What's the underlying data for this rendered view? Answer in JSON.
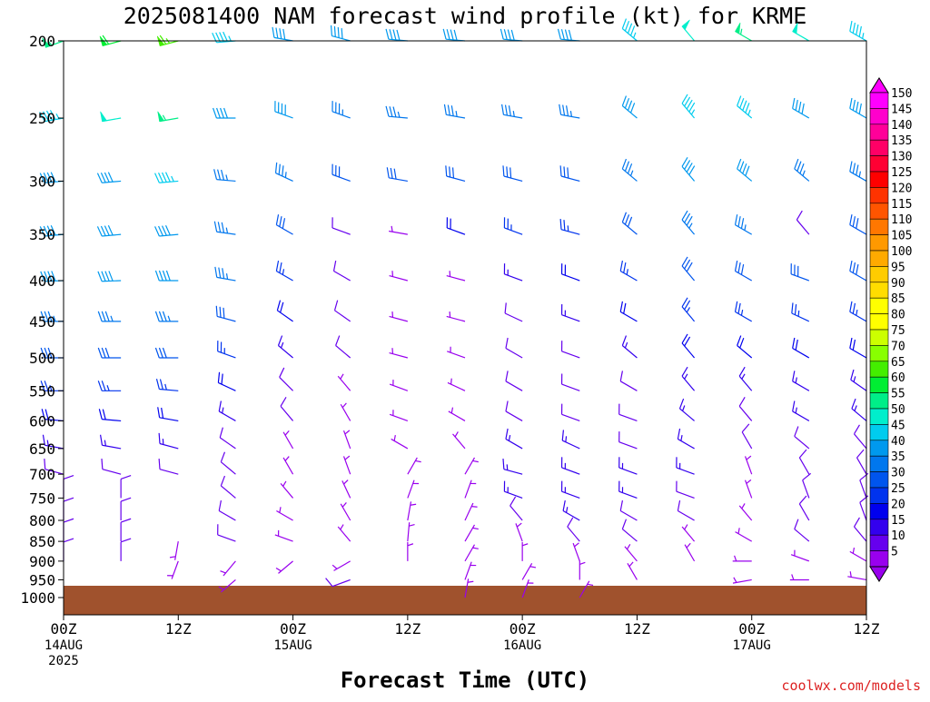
{
  "chart_data": {
    "type": "wind-barb-time-height",
    "title": "2025081400 NAM forecast wind profile (kt) for KRME",
    "xlabel": "Forecast Time (UTC)",
    "credit": "coolwx.com/models",
    "y_axis": {
      "scale": "log-pressure",
      "range_hPa": [
        1000,
        200
      ],
      "ticks": [
        "200",
        "250",
        "300",
        "350",
        "400",
        "450",
        "500",
        "550",
        "600",
        "650",
        "700",
        "750",
        "800",
        "850",
        "900",
        "950",
        "1000"
      ]
    },
    "x_axis": {
      "range_hours": [
        0,
        84
      ],
      "ticks": [
        {
          "hour": 0,
          "line1": "00Z",
          "line2": "14AUG",
          "line3": "2025"
        },
        {
          "hour": 12,
          "line1": "12Z",
          "line2": "",
          "line3": ""
        },
        {
          "hour": 24,
          "line1": "00Z",
          "line2": "15AUG",
          "line3": ""
        },
        {
          "hour": 36,
          "line1": "12Z",
          "line2": "",
          "line3": ""
        },
        {
          "hour": 48,
          "line1": "00Z",
          "line2": "16AUG",
          "line3": ""
        },
        {
          "hour": 60,
          "line1": "12Z",
          "line2": "",
          "line3": ""
        },
        {
          "hour": 72,
          "line1": "00Z",
          "line2": "17AUG",
          "line3": ""
        },
        {
          "hour": 84,
          "line1": "12Z",
          "line2": "",
          "line3": ""
        }
      ]
    },
    "colorbar": {
      "unit": "kt",
      "values": [
        "150",
        "145",
        "140",
        "135",
        "130",
        "125",
        "120",
        "115",
        "110",
        "105",
        "100",
        "95",
        "90",
        "85",
        "80",
        "75",
        "70",
        "65",
        "60",
        "55",
        "50",
        "45",
        "40",
        "35",
        "30",
        "25",
        "20",
        "15",
        "10",
        "5"
      ],
      "colors": [
        "#ff00ff",
        "#ff00cc",
        "#ff0099",
        "#ff0066",
        "#ff0033",
        "#ff0000",
        "#ff3300",
        "#ff5500",
        "#ff7700",
        "#ff9900",
        "#ffaa00",
        "#ffcc00",
        "#ffdd00",
        "#ffff00",
        "#ffff00",
        "#ccff00",
        "#88ff00",
        "#44ee00",
        "#00ee33",
        "#00ee88",
        "#00eecc",
        "#00ccee",
        "#0099ee",
        "#0077ee",
        "#0055ee",
        "#0033ee",
        "#0000ee",
        "#3300ee",
        "#6600ee",
        "#9900ee"
      ]
    },
    "levels_hPa": [
      1000,
      950,
      900,
      850,
      800,
      750,
      700,
      650,
      600,
      550,
      500,
      450,
      400,
      350,
      300,
      250,
      200
    ],
    "wind_columns": [
      {
        "hour": 0,
        "dir": [
          0,
          0,
          0,
          0,
          0,
          0,
          285,
          280,
          275,
          270,
          270,
          270,
          268,
          265,
          265,
          260,
          250
        ],
        "spd": [
          0,
          0,
          10,
          10,
          10,
          10,
          10,
          15,
          20,
          25,
          30,
          35,
          40,
          40,
          40,
          45,
          55
        ]
      },
      {
        "hour": 6,
        "dir": [
          0,
          0,
          0,
          0,
          0,
          0,
          285,
          280,
          275,
          270,
          270,
          270,
          268,
          265,
          265,
          260,
          255
        ],
        "spd": [
          0,
          0,
          10,
          10,
          10,
          10,
          10,
          15,
          20,
          25,
          30,
          35,
          40,
          40,
          40,
          50,
          60
        ]
      },
      {
        "hour": 12,
        "dir": [
          0,
          0,
          200,
          190,
          0,
          0,
          285,
          285,
          280,
          275,
          270,
          270,
          270,
          265,
          265,
          260,
          255
        ],
        "spd": [
          0,
          0,
          5,
          5,
          0,
          0,
          10,
          15,
          20,
          25,
          30,
          35,
          40,
          40,
          45,
          55,
          65
        ]
      },
      {
        "hour": 18,
        "dir": [
          0,
          230,
          220,
          290,
          300,
          310,
          310,
          305,
          300,
          295,
          290,
          285,
          280,
          278,
          275,
          270,
          265
        ],
        "spd": [
          0,
          5,
          5,
          10,
          10,
          10,
          10,
          10,
          15,
          20,
          25,
          30,
          35,
          35,
          35,
          40,
          45
        ]
      },
      {
        "hour": 24,
        "dir": [
          0,
          0,
          230,
          290,
          300,
          320,
          330,
          330,
          320,
          315,
          310,
          305,
          300,
          300,
          295,
          290,
          280
        ],
        "spd": [
          0,
          0,
          5,
          5,
          5,
          5,
          5,
          5,
          10,
          10,
          15,
          20,
          25,
          30,
          35,
          40,
          40
        ]
      },
      {
        "hour": 30,
        "dir": [
          0,
          250,
          240,
          320,
          330,
          335,
          340,
          340,
          330,
          320,
          310,
          305,
          300,
          290,
          290,
          290,
          285
        ],
        "spd": [
          0,
          10,
          5,
          5,
          5,
          5,
          5,
          5,
          5,
          5,
          10,
          10,
          10,
          10,
          30,
          35,
          40
        ]
      },
      {
        "hour": 36,
        "dir": [
          0,
          0,
          360,
          5,
          10,
          20,
          30,
          300,
          290,
          290,
          285,
          285,
          285,
          280,
          280,
          275,
          275
        ],
        "spd": [
          0,
          0,
          5,
          5,
          5,
          5,
          5,
          5,
          5,
          5,
          5,
          5,
          5,
          5,
          30,
          35,
          40
        ]
      },
      {
        "hour": 42,
        "dir": [
          10,
          20,
          30,
          30,
          25,
          20,
          30,
          320,
          300,
          295,
          290,
          285,
          285,
          290,
          285,
          280,
          275
        ],
        "spd": [
          5,
          5,
          5,
          5,
          5,
          5,
          5,
          5,
          5,
          5,
          5,
          5,
          5,
          20,
          30,
          35,
          40
        ]
      },
      {
        "hour": 48,
        "dir": [
          20,
          30,
          360,
          340,
          320,
          290,
          285,
          300,
          300,
          300,
          300,
          295,
          290,
          290,
          285,
          280,
          275
        ],
        "spd": [
          5,
          5,
          5,
          5,
          10,
          15,
          15,
          15,
          10,
          10,
          10,
          10,
          15,
          25,
          30,
          35,
          40
        ]
      },
      {
        "hour": 54,
        "dir": [
          30,
          360,
          340,
          320,
          300,
          290,
          290,
          295,
          290,
          290,
          290,
          290,
          290,
          285,
          285,
          280,
          275
        ],
        "spd": [
          5,
          5,
          5,
          10,
          15,
          15,
          15,
          15,
          10,
          10,
          10,
          15,
          20,
          25,
          30,
          35,
          40
        ]
      },
      {
        "hour": 60,
        "dir": [
          0,
          330,
          320,
          310,
          300,
          290,
          290,
          290,
          290,
          300,
          310,
          300,
          300,
          310,
          310,
          310,
          310
        ],
        "spd": [
          0,
          5,
          5,
          10,
          10,
          15,
          15,
          10,
          10,
          10,
          15,
          20,
          25,
          30,
          35,
          40,
          45
        ]
      },
      {
        "hour": 66,
        "dir": [
          0,
          0,
          330,
          320,
          300,
          290,
          290,
          300,
          310,
          320,
          320,
          320,
          320,
          320,
          320,
          320,
          320
        ],
        "spd": [
          0,
          0,
          5,
          5,
          10,
          10,
          15,
          15,
          15,
          15,
          20,
          25,
          30,
          35,
          40,
          45,
          50
        ]
      },
      {
        "hour": 72,
        "dir": [
          0,
          260,
          270,
          300,
          320,
          340,
          340,
          330,
          320,
          320,
          310,
          300,
          300,
          300,
          310,
          310,
          300
        ],
        "spd": [
          0,
          5,
          5,
          5,
          5,
          5,
          5,
          10,
          10,
          15,
          20,
          25,
          30,
          35,
          40,
          45,
          55
        ]
      },
      {
        "hour": 78,
        "dir": [
          0,
          270,
          290,
          310,
          330,
          340,
          330,
          310,
          300,
          300,
          300,
          295,
          290,
          320,
          310,
          300,
          300
        ],
        "spd": [
          0,
          5,
          5,
          10,
          10,
          10,
          10,
          10,
          15,
          15,
          20,
          25,
          30,
          10,
          35,
          40,
          50
        ]
      },
      {
        "hour": 84,
        "dir": [
          0,
          280,
          300,
          320,
          340,
          340,
          330,
          320,
          310,
          305,
          300,
          300,
          300,
          300,
          300,
          300,
          300
        ],
        "spd": [
          0,
          5,
          5,
          10,
          10,
          10,
          10,
          10,
          15,
          15,
          20,
          25,
          30,
          30,
          35,
          40,
          45
        ]
      }
    ]
  }
}
